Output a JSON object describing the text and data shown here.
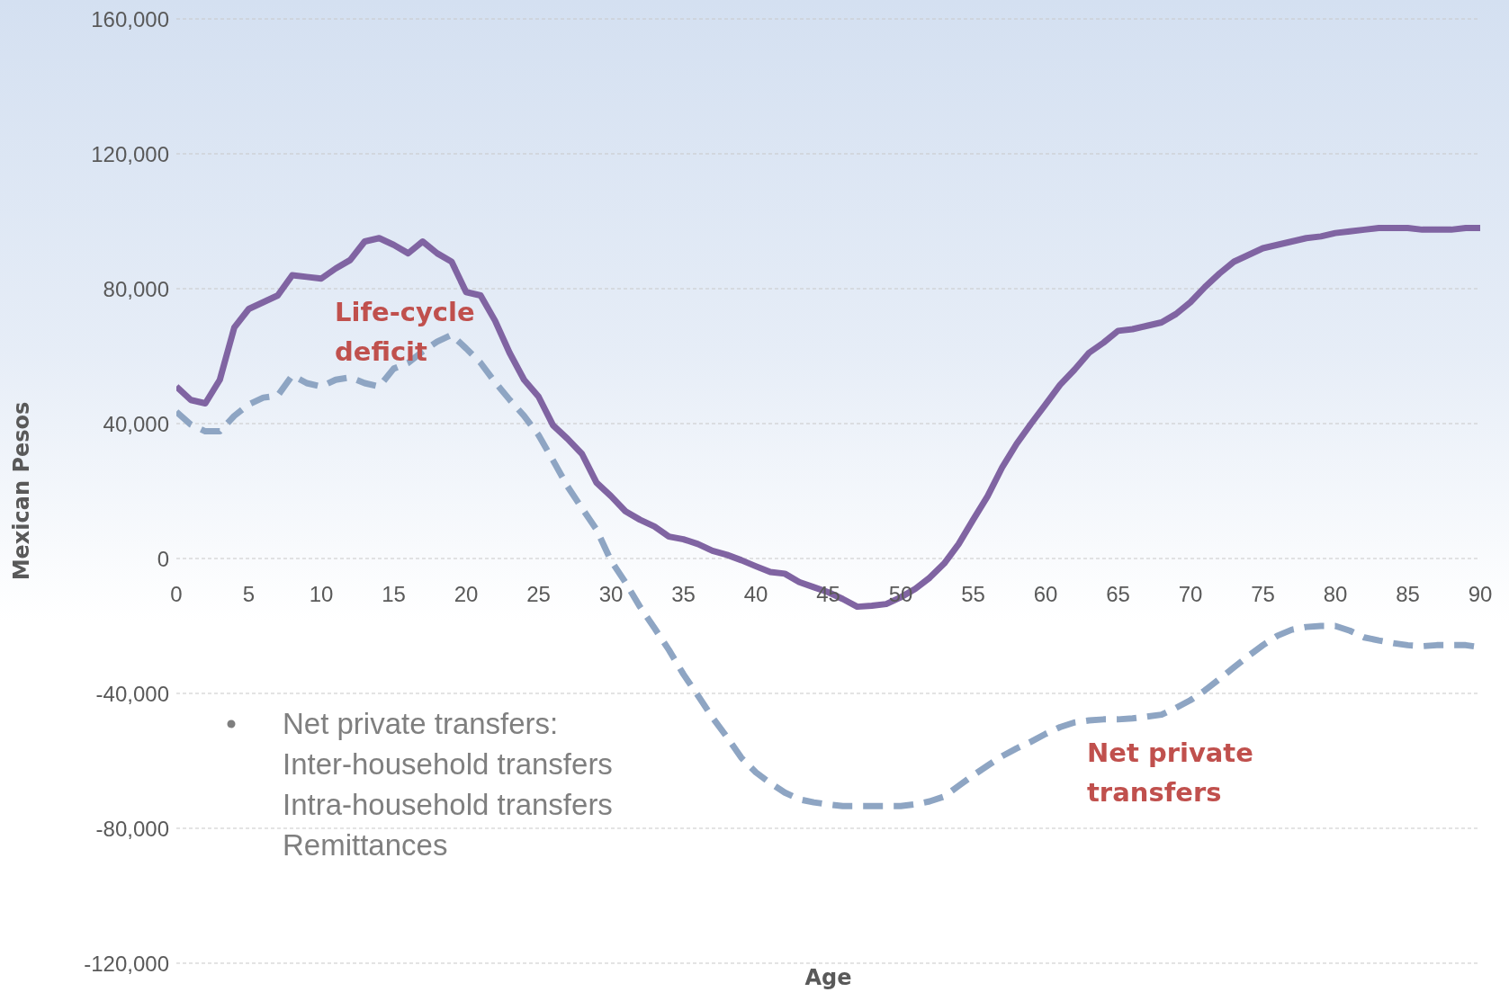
{
  "chart_data": {
    "type": "line",
    "xlabel": "Age",
    "ylabel": "Mexican Pesos",
    "x": [
      0,
      1,
      2,
      3,
      4,
      5,
      6,
      7,
      8,
      9,
      10,
      11,
      12,
      13,
      14,
      15,
      16,
      17,
      18,
      19,
      20,
      21,
      22,
      23,
      24,
      25,
      26,
      27,
      28,
      29,
      30,
      31,
      32,
      33,
      34,
      35,
      36,
      37,
      38,
      39,
      40,
      41,
      42,
      43,
      44,
      45,
      46,
      47,
      48,
      49,
      50,
      51,
      52,
      53,
      54,
      55,
      56,
      57,
      58,
      59,
      60,
      61,
      62,
      63,
      64,
      65,
      66,
      67,
      68,
      69,
      70,
      71,
      72,
      73,
      74,
      75,
      76,
      77,
      78,
      79,
      80,
      81,
      82,
      83,
      84,
      85,
      86,
      87,
      88,
      89,
      90
    ],
    "series": [
      {
        "name": "Life-cycle deficit",
        "color": "#8064a2",
        "line_style": "solid",
        "values": [
          51000,
          47000,
          46000,
          53000,
          68500,
          74000,
          76000,
          78000,
          84000,
          83500,
          83000,
          86000,
          88500,
          94000,
          95000,
          93000,
          90500,
          94000,
          90500,
          88000,
          79000,
          78000,
          70500,
          61000,
          53000,
          48000,
          39500,
          35500,
          31000,
          22500,
          18500,
          14000,
          11500,
          9500,
          6500,
          5700,
          4300,
          2300,
          1100,
          -500,
          -2300,
          -4000,
          -4500,
          -7000,
          -8500,
          -10000,
          -12000,
          -14300,
          -14000,
          -13500,
          -11500,
          -9000,
          -5700,
          -1500,
          4300,
          11500,
          18500,
          27000,
          34000,
          40000,
          45700,
          51500,
          56000,
          61000,
          64000,
          67500,
          68000,
          69000,
          70000,
          72500,
          76000,
          80500,
          84500,
          88000,
          90000,
          92000,
          93000,
          94000,
          95000,
          95500,
          96500,
          97000,
          97500,
          98000,
          98000,
          98000,
          97500,
          97500,
          97500,
          98000,
          98000
        ]
      },
      {
        "name": "Net private transfers",
        "color": "#8ea5c3",
        "line_style": "dashed",
        "values": [
          43500,
          39700,
          37700,
          37700,
          42300,
          45700,
          47700,
          48300,
          54300,
          52000,
          51000,
          53000,
          53700,
          52000,
          51000,
          56300,
          58000,
          61400,
          64300,
          66300,
          62300,
          58000,
          52300,
          47100,
          42300,
          36600,
          29100,
          21400,
          14900,
          8600,
          -600,
          -7100,
          -14300,
          -20600,
          -27100,
          -34300,
          -40600,
          -47100,
          -52900,
          -59100,
          -63400,
          -66600,
          -69400,
          -71400,
          -72300,
          -72900,
          -73400,
          -73400,
          -73400,
          -73400,
          -73400,
          -72900,
          -72000,
          -70600,
          -67400,
          -64300,
          -61400,
          -58600,
          -56300,
          -54300,
          -52000,
          -50000,
          -48600,
          -48000,
          -47700,
          -47700,
          -47400,
          -46900,
          -46300,
          -44300,
          -42000,
          -39100,
          -35700,
          -32300,
          -28900,
          -25700,
          -22900,
          -21100,
          -20300,
          -20000,
          -20000,
          -21400,
          -23400,
          -24300,
          -25100,
          -25700,
          -26000,
          -25700,
          -25700,
          -25700,
          -26300
        ]
      }
    ],
    "xlim": [
      0,
      90
    ],
    "xticks": [
      0,
      5,
      10,
      15,
      20,
      25,
      30,
      35,
      40,
      45,
      50,
      55,
      60,
      65,
      70,
      75,
      80,
      85,
      90
    ],
    "ylim": [
      -120000,
      160000
    ],
    "yticks": [
      {
        "value": -120000,
        "label": "-120,000"
      },
      {
        "value": -80000,
        "label": "-80,000"
      },
      {
        "value": -40000,
        "label": "-40,000"
      },
      {
        "value": 0,
        "label": "0"
      },
      {
        "value": 40000,
        "label": "40,000"
      },
      {
        "value": 80000,
        "label": "80,000"
      },
      {
        "value": 120000,
        "label": "120,000"
      },
      {
        "value": 160000,
        "label": "160,000"
      }
    ],
    "grid": "y",
    "marker": "none",
    "annotations": [
      "Net private transfers:",
      "Inter-household transfers",
      "Intra-household transfers",
      "Remittances"
    ]
  }
}
